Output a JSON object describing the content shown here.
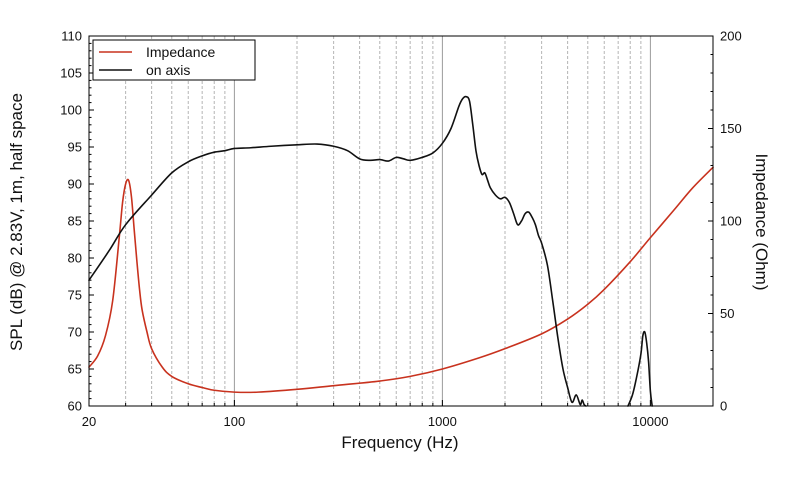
{
  "chart_data": {
    "type": "line",
    "title": "",
    "xlabel": "Frequency (Hz)",
    "ylabel": "SPL (dB) @ 2.83V, 1m, half space",
    "y2label": "Impedance (Ohm)",
    "xscale": "log",
    "xlim": [
      20,
      20000
    ],
    "ylim": [
      60,
      110
    ],
    "y2lim": [
      0,
      200
    ],
    "grid": true,
    "legend_position": "top-left",
    "x_tick_labels": [
      "20",
      "100",
      "1000",
      "10000"
    ],
    "x_tick_values": [
      20,
      100,
      1000,
      10000
    ],
    "y_tick_labels": [
      "60",
      "65",
      "70",
      "75",
      "80",
      "85",
      "90",
      "95",
      "100",
      "105",
      "110"
    ],
    "y2_tick_labels": [
      "0",
      "50",
      "100",
      "150",
      "200"
    ],
    "series": [
      {
        "name": "Impedance",
        "axis": "right",
        "color": "#c8321e",
        "x": [
          20,
          22,
          24,
          26,
          28,
          29,
          30,
          31,
          32,
          33,
          34,
          35,
          36,
          38,
          40,
          45,
          50,
          60,
          70,
          80,
          100,
          130,
          200,
          300,
          500,
          700,
          1000,
          1500,
          2000,
          3000,
          4000,
          5000,
          6000,
          8000,
          10000,
          13000,
          16000,
          20000
        ],
        "y": [
          21,
          27,
          38,
          57,
          92,
          110,
          120,
          122,
          113,
          95,
          78,
          63,
          52,
          40,
          31,
          21,
          16,
          12,
          10,
          8.5,
          7.5,
          7.5,
          9,
          11,
          13.5,
          16,
          20,
          26,
          31,
          39,
          47,
          55,
          63,
          78,
          91,
          106,
          118,
          129
        ]
      },
      {
        "name": "on axis",
        "axis": "left",
        "color": "#111111",
        "x": [
          20,
          25,
          30,
          40,
          50,
          60,
          70,
          80,
          90,
          100,
          120,
          150,
          200,
          250,
          300,
          350,
          400,
          450,
          500,
          550,
          600,
          650,
          700,
          800,
          900,
          1000,
          1100,
          1200,
          1250,
          1300,
          1350,
          1400,
          1450,
          1500,
          1550,
          1600,
          1650,
          1700,
          1800,
          1900,
          2000,
          2100,
          2200,
          2300,
          2400,
          2500,
          2600,
          2700,
          2800,
          2900,
          3000,
          3200,
          3400,
          3600,
          3800,
          4000,
          4200,
          4400,
          4600,
          4700,
          4800,
          4900
        ],
        "y": [
          77,
          81,
          84.5,
          88.5,
          91.5,
          93,
          93.8,
          94.3,
          94.5,
          94.8,
          94.9,
          95.1,
          95.3,
          95.4,
          95.1,
          94.5,
          93.4,
          93.2,
          93.3,
          93.1,
          93.6,
          93.4,
          93.2,
          93.6,
          94.2,
          95.5,
          97.5,
          100.5,
          101.5,
          101.8,
          101.2,
          98,
          94.5,
          92.5,
          91.3,
          91.5,
          90.5,
          89.5,
          88.5,
          88,
          88.2,
          87.5,
          86,
          84.5,
          85,
          86,
          86.2,
          85.5,
          84.5,
          83,
          82,
          79,
          74,
          69,
          65,
          62.5,
          60.5,
          61.5,
          60.2,
          60.8,
          60.2,
          60
        ]
      },
      {
        "name": "",
        "axis": "left",
        "color": "#111111",
        "x": [
          7800,
          8200,
          8600,
          9000,
          9200,
          9400,
          9600,
          9800,
          10000,
          10200
        ],
        "y": [
          60,
          61.5,
          64,
          67,
          69.5,
          70,
          68.5,
          66,
          62,
          60
        ]
      }
    ]
  }
}
